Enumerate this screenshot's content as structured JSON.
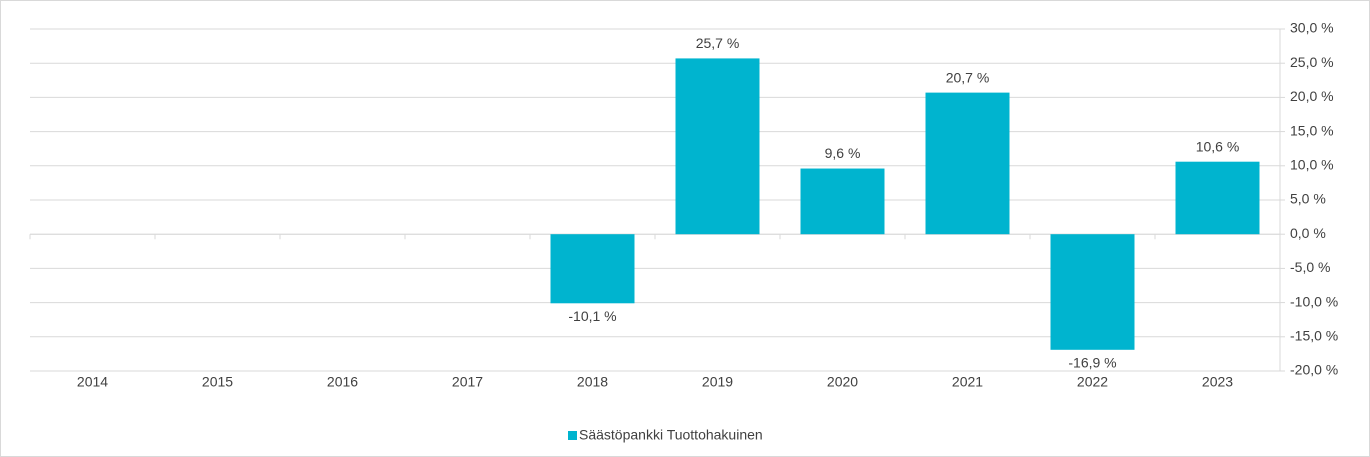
{
  "chart_data": {
    "type": "bar",
    "categories": [
      "2014",
      "2015",
      "2016",
      "2017",
      "2018",
      "2019",
      "2020",
      "2021",
      "2022",
      "2023"
    ],
    "series": [
      {
        "name": "Säästöpankki Tuottohakuinen",
        "color": "#00b4cf",
        "values": [
          null,
          null,
          null,
          null,
          -10.1,
          25.7,
          9.6,
          20.7,
          -16.9,
          10.6
        ],
        "value_labels": [
          null,
          null,
          null,
          null,
          "-10,1 %",
          "25,7 %",
          "9,6 %",
          "20,7 %",
          "-16,9 %",
          "10,6 %"
        ]
      }
    ],
    "ylim": [
      -20,
      30
    ],
    "yticks": [
      {
        "value": -20,
        "label": "-20,0 %"
      },
      {
        "value": -15,
        "label": "-15,0 %"
      },
      {
        "value": -10,
        "label": "-10,0 %"
      },
      {
        "value": -5,
        "label": "-5,0 %"
      },
      {
        "value": 0,
        "label": "0,0 %"
      },
      {
        "value": 5,
        "label": "5,0 %"
      },
      {
        "value": 10,
        "label": "10,0 %"
      },
      {
        "value": 15,
        "label": "15,0 %"
      },
      {
        "value": 20,
        "label": "20,0 %"
      },
      {
        "value": 25,
        "label": "25,0 %"
      },
      {
        "value": 30,
        "label": "30,0 %"
      }
    ],
    "grid": true,
    "legend": "bottom"
  }
}
